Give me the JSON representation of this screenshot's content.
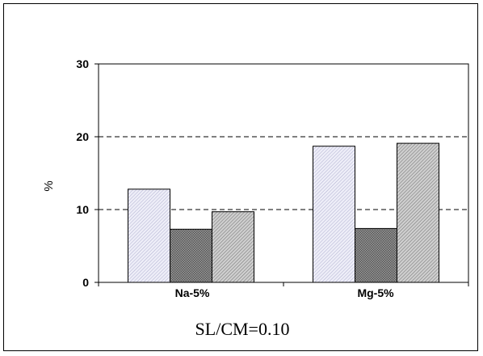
{
  "chart_data": {
    "type": "bar",
    "categories": [
      "Na-5%",
      "Mg-5%"
    ],
    "series": [
      {
        "values": [
          12.8,
          18.7
        ],
        "color": "#d8d8ee",
        "pattern": "light-hatch"
      },
      {
        "values": [
          7.3,
          7.4
        ],
        "color": "#777777",
        "pattern": "dense-dots"
      },
      {
        "values": [
          9.7,
          19.1
        ],
        "color": "#b8b8b8",
        "pattern": "hatch"
      }
    ],
    "xlabel": "SL/CM=0.10",
    "ylabel": "%",
    "ylim": [
      0,
      30
    ],
    "yticks": [
      "0",
      "10",
      "20",
      "30"
    ],
    "grid": "dashed horizontal at 10 and 20"
  }
}
